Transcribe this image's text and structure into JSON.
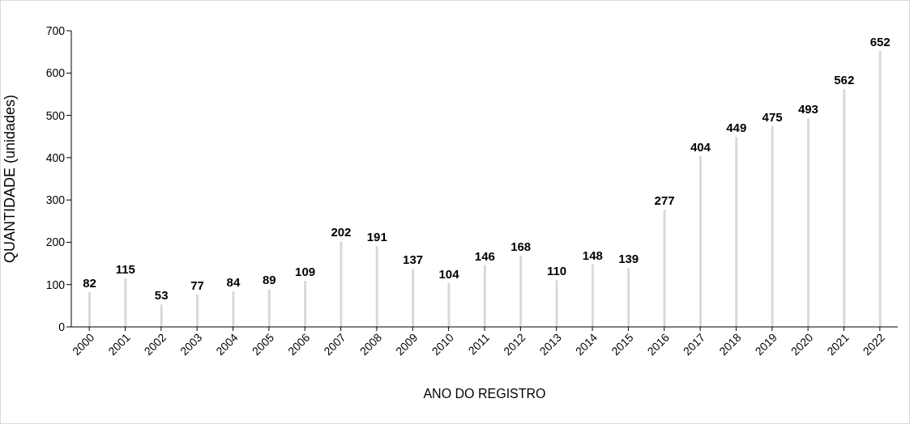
{
  "chart_data": {
    "type": "bar",
    "xlabel": "ANO DO REGISTRO",
    "ylabel": "QUANTIDADE (unidades)",
    "categories": [
      "2000",
      "2001",
      "2002",
      "2003",
      "2004",
      "2005",
      "2006",
      "2007",
      "2008",
      "2009",
      "2010",
      "2011",
      "2012",
      "2013",
      "2014",
      "2015",
      "2016",
      "2017",
      "2018",
      "2019",
      "2020",
      "2021",
      "2022"
    ],
    "values": [
      82,
      115,
      53,
      77,
      84,
      89,
      109,
      202,
      191,
      137,
      104,
      146,
      168,
      110,
      148,
      139,
      277,
      404,
      449,
      475,
      493,
      562,
      652
    ],
    "color": "#d9d9d9",
    "ylim": [
      0,
      700
    ],
    "yticks": [
      0,
      100,
      200,
      300,
      400,
      500,
      600,
      700
    ],
    "grid": false,
    "data_labels": true
  }
}
